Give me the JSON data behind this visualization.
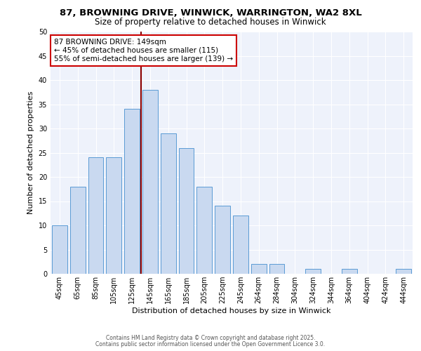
{
  "title1": "87, BROWNING DRIVE, WINWICK, WARRINGTON, WA2 8XL",
  "title2": "Size of property relative to detached houses in Winwick",
  "xlabel": "Distribution of detached houses by size in Winwick",
  "ylabel": "Number of detached properties",
  "bar_labels": [
    "45sqm",
    "65sqm",
    "85sqm",
    "105sqm",
    "125sqm",
    "145sqm",
    "165sqm",
    "185sqm",
    "205sqm",
    "225sqm",
    "245sqm",
    "264sqm",
    "284sqm",
    "304sqm",
    "324sqm",
    "344sqm",
    "364sqm",
    "404sqm",
    "424sqm",
    "444sqm"
  ],
  "bar_values": [
    10,
    18,
    24,
    24,
    34,
    38,
    29,
    26,
    18,
    14,
    12,
    2,
    2,
    0,
    1,
    0,
    1,
    0,
    0,
    1
  ],
  "bar_color": "#c9d9f0",
  "bar_edge_color": "#5b9bd5",
  "vline_x": 4.5,
  "vline_color": "#8b0000",
  "ylim": [
    0,
    50
  ],
  "yticks": [
    0,
    5,
    10,
    15,
    20,
    25,
    30,
    35,
    40,
    45,
    50
  ],
  "annotation_text": "87 BROWNING DRIVE: 149sqm\n← 45% of detached houses are smaller (115)\n55% of semi-detached houses are larger (139) →",
  "annotation_box_color": "#ffffff",
  "annotation_box_edge_color": "#cc0000",
  "footer_text1": "Contains HM Land Registry data © Crown copyright and database right 2025.",
  "footer_text2": "Contains public sector information licensed under the Open Government Licence 3.0.",
  "background_color": "#eef2fb",
  "fig_background_color": "#ffffff",
  "grid_color": "#ffffff",
  "title1_fontsize": 9.5,
  "title2_fontsize": 8.5,
  "ylabel_fontsize": 8,
  "xlabel_fontsize": 8,
  "footer_fontsize": 5.5,
  "annotation_fontsize": 7.5,
  "tick_fontsize": 7
}
